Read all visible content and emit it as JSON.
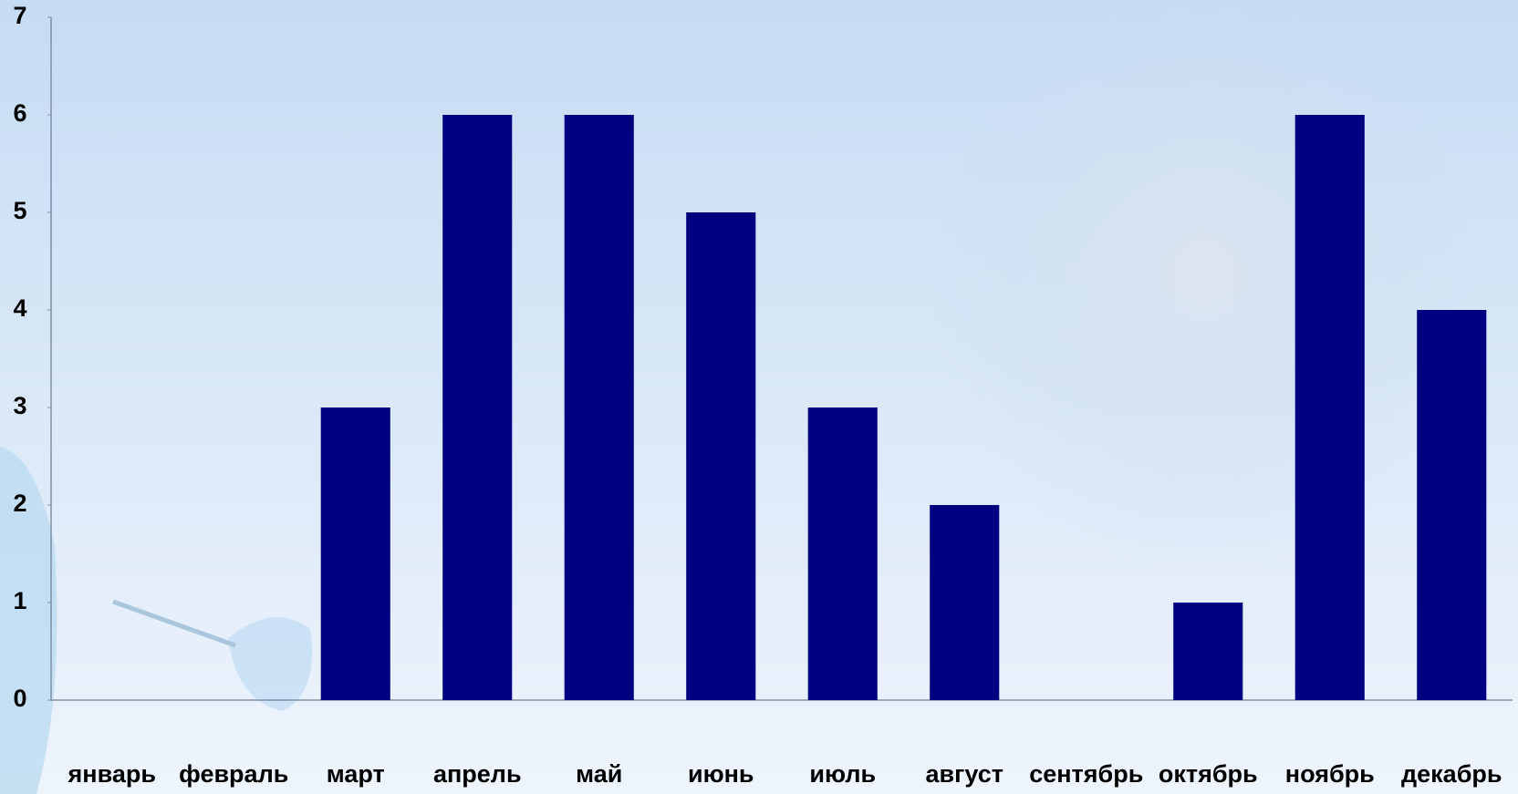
{
  "chart_data": {
    "type": "bar",
    "categories": [
      "январь",
      "февраль",
      "март",
      "апрель",
      "май",
      "июнь",
      "июль",
      "август",
      "сентябрь",
      "октябрь",
      "ноябрь",
      "декабрь"
    ],
    "values": [
      0,
      0,
      3,
      6,
      6,
      5,
      3,
      2,
      0,
      1,
      6,
      4
    ],
    "color": "#000080",
    "ylim": [
      0,
      7
    ],
    "yticks": [
      0,
      1,
      2,
      3,
      4,
      5,
      6,
      7
    ],
    "grid": false
  }
}
